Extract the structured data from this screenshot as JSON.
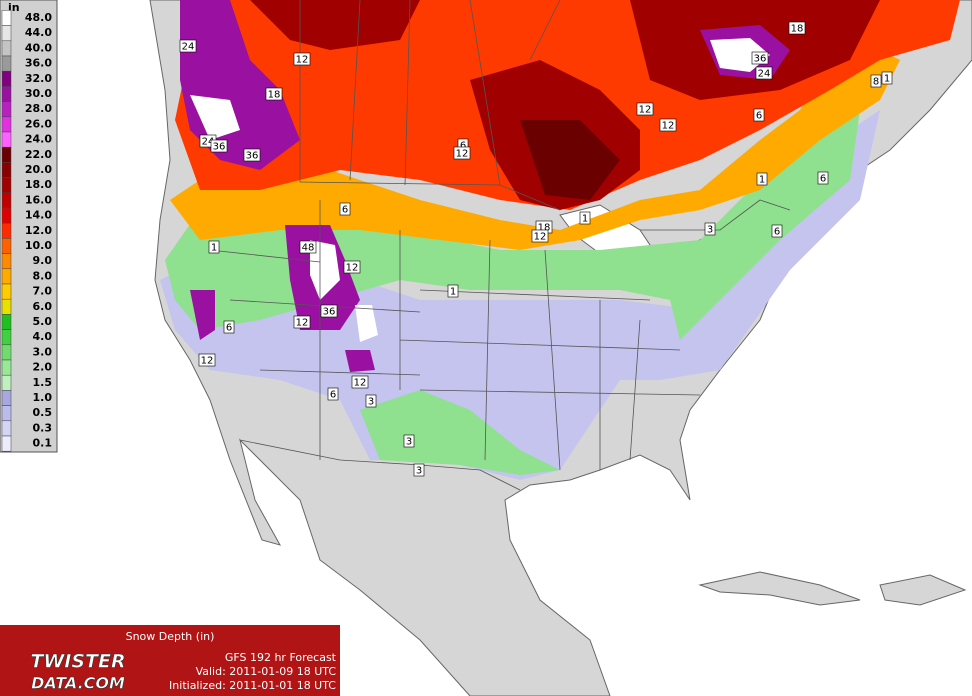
{
  "legend": {
    "unit": "in",
    "items": [
      {
        "value": 48,
        "label": "48.0",
        "color": "#ffffff"
      },
      {
        "value": 44,
        "label": "44.0",
        "color": "#e6e6e6"
      },
      {
        "value": 40,
        "label": "40.0",
        "color": "#c4c4c4"
      },
      {
        "value": 36,
        "label": "36.0",
        "color": "#9a9a9a"
      },
      {
        "value": 32,
        "label": "32.0",
        "color": "#800080"
      },
      {
        "value": 30,
        "label": "30.0",
        "color": "#9a10a0"
      },
      {
        "value": 28,
        "label": "28.0",
        "color": "#b820c0"
      },
      {
        "value": 26,
        "label": "26.0",
        "color": "#e030e0"
      },
      {
        "value": 24,
        "label": "24.0",
        "color": "#ff60ff"
      },
      {
        "value": 22,
        "label": "22.0",
        "color": "#6a0000"
      },
      {
        "value": 20,
        "label": "20.0",
        "color": "#880000"
      },
      {
        "value": 18,
        "label": "18.0",
        "color": "#a00000"
      },
      {
        "value": 16,
        "label": "16.0",
        "color": "#c00000"
      },
      {
        "value": 14,
        "label": "14.0",
        "color": "#e00000"
      },
      {
        "value": 12,
        "label": "12.0",
        "color": "#ff2a00"
      },
      {
        "value": 10,
        "label": "10.0",
        "color": "#ff6000"
      },
      {
        "value": 9,
        "label": "9.0",
        "color": "#ff8a00"
      },
      {
        "value": 8,
        "label": "8.0",
        "color": "#ffaa00"
      },
      {
        "value": 7,
        "label": "7.0",
        "color": "#ffcc00"
      },
      {
        "value": 6,
        "label": "6.0",
        "color": "#e8e000"
      },
      {
        "value": 5,
        "label": "5.0",
        "color": "#20c020"
      },
      {
        "value": 4,
        "label": "4.0",
        "color": "#40d040"
      },
      {
        "value": 3,
        "label": "3.0",
        "color": "#70dc70"
      },
      {
        "value": 2,
        "label": "2.0",
        "color": "#98e898"
      },
      {
        "value": 1.5,
        "label": "1.5",
        "color": "#c0f0c0"
      },
      {
        "value": 1,
        "label": "1.0",
        "color": "#a8a8e0"
      },
      {
        "value": 0.5,
        "label": "0.5",
        "color": "#bcbcec"
      },
      {
        "value": 0.3,
        "label": "0.3",
        "color": "#d4d4f4"
      },
      {
        "value": 0.1,
        "label": "0.1",
        "color": "#ececfa"
      }
    ]
  },
  "map": {
    "contour_labels": [
      24,
      12,
      18,
      36,
      24,
      18,
      12,
      6,
      12,
      24,
      36,
      36,
      6,
      12,
      1,
      6,
      6,
      1,
      18,
      12,
      3,
      6,
      1,
      48,
      12,
      1,
      36,
      12,
      6,
      12,
      12,
      6,
      3,
      3,
      3,
      8,
      1
    ]
  },
  "title_box": {
    "title": "Snow Depth (in)",
    "model": "GFS 192 hr Forecast",
    "valid": "Valid: 2011-01-09 18 UTC",
    "initialized": "Initialized: 2011-01-01 18 UTC",
    "logo": {
      "line1": "TWISTER",
      "line2": "DATA.COM"
    }
  }
}
